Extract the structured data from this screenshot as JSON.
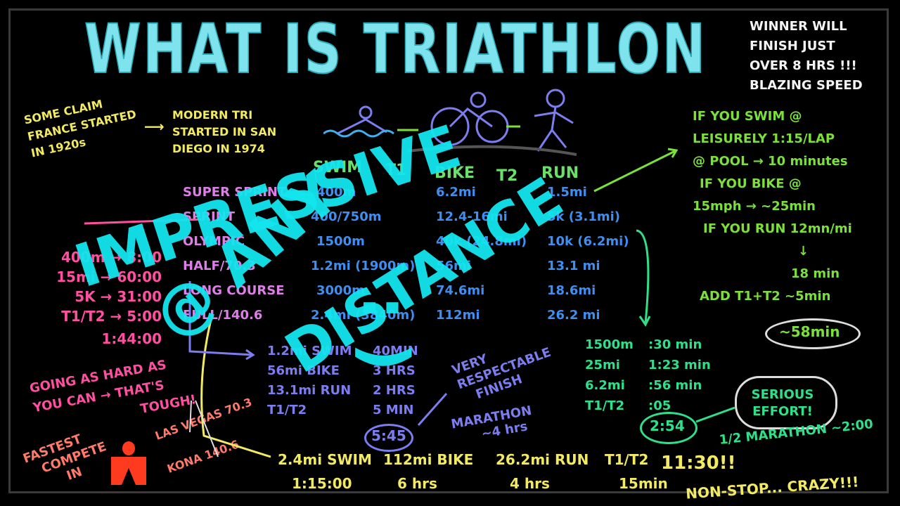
{
  "title": "WHAT IS TRIATHLON",
  "winner_note": [
    "WINNER WILL",
    "FINISH JUST",
    "OVER 8 HRS !!!",
    "BLAZING SPEED"
  ],
  "history": {
    "france": [
      "SOME CLAIM",
      "FRANCE STARTED",
      "IN 1920s"
    ],
    "modern": [
      "MODERN TRI",
      "STARTED IN SAN",
      "DIEGO IN 1974"
    ]
  },
  "overlay": {
    "line1": "IMPRESSIVE",
    "line2": "@ ANY",
    "line3": "DISTANCE",
    "smiley": ": )"
  },
  "icons": [
    "swim-icon",
    "bike-icon",
    "run-icon"
  ],
  "headers": [
    "SWIM",
    "T1",
    "BIKE",
    "T2",
    "RUN"
  ],
  "distances": [
    {
      "name": "SUPER SPRINT",
      "swim": "400m",
      "bike": "6.2mi",
      "run": "1.5mi"
    },
    {
      "name": "SPRINT",
      "swim": "400/750m",
      "bike": "12.4-16mi",
      "run": "5k (3.1mi)"
    },
    {
      "name": "OLYMPIC",
      "swim": "1500m",
      "bike": "40k (24.8mi)",
      "run": "10k (6.2mi)"
    },
    {
      "name": "HALF/70.3",
      "swim": "1.2mi (1900m)",
      "bike": "56mi",
      "run": "13.1 mi"
    },
    {
      "name": "LONG COURSE",
      "swim": "3000m",
      "bike": "74.6mi",
      "run": "18.6mi"
    },
    {
      "name": "FULL/140.6",
      "swim": "2.4mi (3840m)",
      "bike": "112mi",
      "run": "26.2 mi"
    }
  ],
  "sprint_times": [
    "400m → 8:00",
    "15mi → 60:00",
    "5K → 31:00",
    "T1/T2 → 5:00",
    "1:44:00"
  ],
  "sprint_note": [
    "GOING AS HARD AS",
    "YOU CAN → THAT'S",
    "TOUGH!"
  ],
  "half_times": {
    "rows": [
      [
        "1.2mi SWIM",
        "40MIN"
      ],
      [
        "56mi BIKE",
        "3 HRS"
      ],
      [
        "13.1mi RUN",
        "2 HRS"
      ],
      [
        "T1/T2",
        "5 MIN"
      ]
    ],
    "total": "5:45",
    "note": [
      "VERY",
      "RESPECTABLE",
      "FINISH"
    ],
    "marathon": [
      "MARATHON",
      "~4 hrs"
    ]
  },
  "fastest": {
    "text": [
      "FASTEST",
      "COMPETE",
      "IN"
    ],
    "logo": "M",
    "races": [
      "LAS VEGAS 70.3",
      "KONA 140.6"
    ],
    "logo_color": "#ff3b1f"
  },
  "full_times": [
    [
      "2.4mi SWIM",
      "1:15:00"
    ],
    [
      "112mi BIKE",
      "6 hrs"
    ],
    [
      "26.2mi RUN",
      "4 hrs"
    ],
    [
      "T1/T2",
      "15min"
    ]
  ],
  "full_total": "11:30!!",
  "full_note": "NON-STOP... CRAZY!!!",
  "olympic_times": {
    "rows": [
      [
        "1500m",
        ":30 min"
      ],
      [
        "25mi",
        "1:23 min"
      ],
      [
        "6.2mi",
        ":56 min"
      ],
      [
        "T1/T2",
        ":05"
      ]
    ],
    "total": "2:54",
    "cloud": [
      "SERIOUS",
      "EFFORT!"
    ],
    "half_marathon": "1/2 MARATHON ~2:00"
  },
  "super_sprint_calc": [
    "IF YOU SWIM @",
    "LEISURELY 1:15/LAP",
    "@ POOL → 10 minutes",
    "IF YOU BIKE @",
    "15mph → ~25min",
    "IF YOU RUN 12mn/mi",
    "↓",
    "18 min",
    "ADD T1+T2 ~5min"
  ],
  "super_sprint_total": "~58min"
}
